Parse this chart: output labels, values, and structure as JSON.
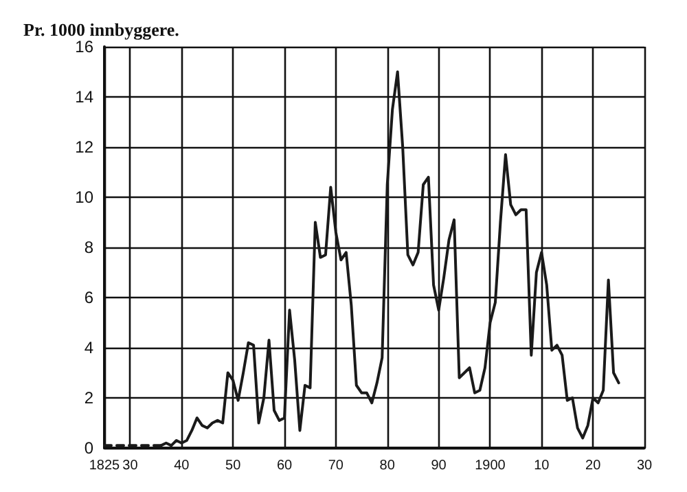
{
  "chart_data": {
    "type": "line",
    "ylabel": "Pr. 1000 innbyggere.",
    "xlim": [
      1825,
      1930
    ],
    "xticks": [
      {
        "value": 1825,
        "label": "1825"
      },
      {
        "value": 1830,
        "label": "30"
      },
      {
        "value": 1840,
        "label": "40"
      },
      {
        "value": 1850,
        "label": "50"
      },
      {
        "value": 1860,
        "label": "60"
      },
      {
        "value": 1870,
        "label": "70"
      },
      {
        "value": 1880,
        "label": "80"
      },
      {
        "value": 1890,
        "label": "90"
      },
      1900,
      {
        "value": 1910,
        "label": "10"
      },
      {
        "value": 1920,
        "label": "20"
      },
      {
        "value": 1930,
        "label": "30"
      }
    ],
    "ylim": [
      0,
      16
    ],
    "yticks": [
      0,
      2,
      4,
      6,
      8,
      10,
      12,
      14,
      16
    ],
    "grid": true,
    "marker": "none",
    "series": [
      {
        "color": "#1a1a1a",
        "line_style": "dashed",
        "x": [
          1825,
          1826,
          1827,
          1828,
          1829,
          1830,
          1831,
          1832,
          1833,
          1834,
          1835,
          1836
        ],
        "values": [
          0.1,
          0.1,
          0.1,
          0.1,
          0.1,
          0.1,
          0.1,
          0.1,
          0.1,
          0.1,
          0.1,
          0.1
        ]
      },
      {
        "color": "#1a1a1a",
        "line_style": "solid",
        "x": [
          1836,
          1837,
          1838,
          1839,
          1840,
          1841,
          1842,
          1843,
          1844,
          1845,
          1846,
          1847,
          1848,
          1849,
          1850,
          1851,
          1852,
          1853,
          1854,
          1855,
          1856,
          1857,
          1858,
          1859,
          1860,
          1861,
          1862,
          1863,
          1864,
          1865,
          1866,
          1867,
          1868,
          1869,
          1870,
          1871,
          1872,
          1873,
          1874,
          1875,
          1876,
          1877,
          1878,
          1879,
          1880,
          1881,
          1882,
          1883,
          1884,
          1885,
          1886,
          1887,
          1888,
          1889,
          1890,
          1891,
          1892,
          1893,
          1894,
          1895,
          1896,
          1897,
          1898,
          1899,
          1900,
          1901,
          1902,
          1903,
          1904,
          1905,
          1906,
          1907,
          1908,
          1909,
          1910,
          1911,
          1912,
          1913,
          1914,
          1915,
          1916,
          1917,
          1918,
          1919,
          1920,
          1921,
          1922,
          1923,
          1924,
          1925
        ],
        "values": [
          0.1,
          0.2,
          0.1,
          0.3,
          0.2,
          0.3,
          0.7,
          1.2,
          0.9,
          0.8,
          1.0,
          1.1,
          1.0,
          3.0,
          2.7,
          1.9,
          3.0,
          4.2,
          4.1,
          1.0,
          2.0,
          4.3,
          1.5,
          1.1,
          1.2,
          5.5,
          3.5,
          0.7,
          2.5,
          2.4,
          9.0,
          7.6,
          7.7,
          10.4,
          8.6,
          7.5,
          7.8,
          5.7,
          2.5,
          2.2,
          2.2,
          1.8,
          2.6,
          3.6,
          10.5,
          13.5,
          15.0,
          12.0,
          7.7,
          7.3,
          7.8,
          10.5,
          10.8,
          6.5,
          5.5,
          6.8,
          8.3,
          9.1,
          2.8,
          3.0,
          3.2,
          2.2,
          2.3,
          3.2,
          5.0,
          5.8,
          9.0,
          11.7,
          9.7,
          9.3,
          9.5,
          9.5,
          3.7,
          7.0,
          7.8,
          6.5,
          3.9,
          4.1,
          3.7,
          1.9,
          2.0,
          0.8,
          0.4,
          0.9,
          2.0,
          1.8,
          2.3,
          6.7,
          3.0,
          2.6
        ]
      }
    ]
  }
}
